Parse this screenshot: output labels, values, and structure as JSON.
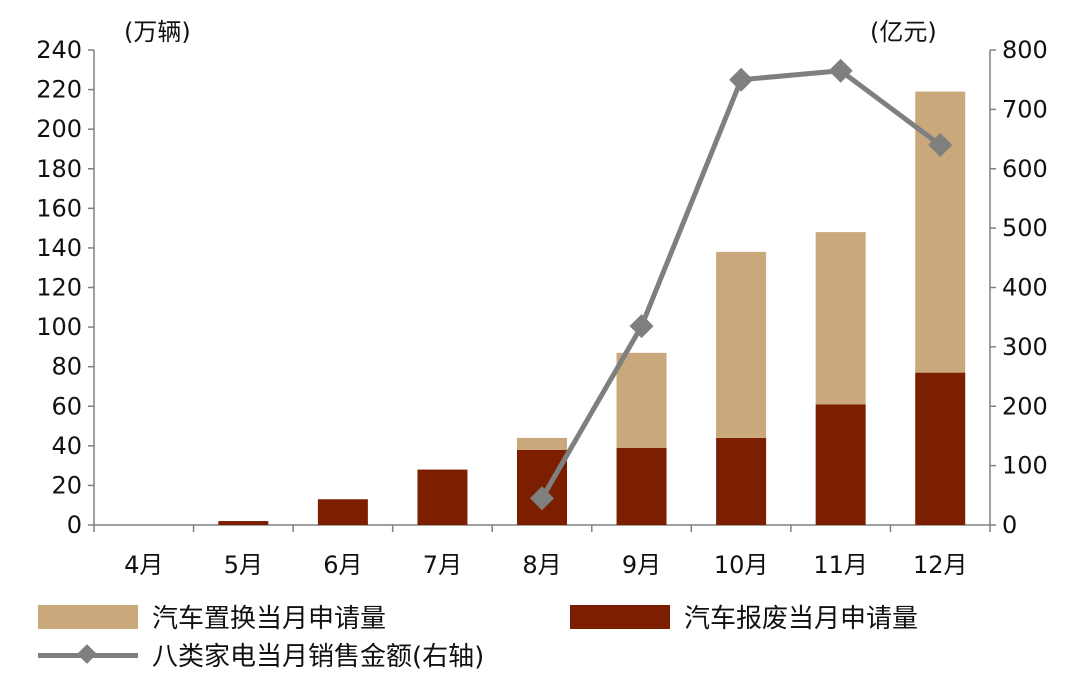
{
  "chart_data": {
    "type": "bar+line",
    "categories": [
      "4月",
      "5月",
      "6月",
      "7月",
      "8月",
      "9月",
      "10月",
      "11月",
      "12月"
    ],
    "series": [
      {
        "name": "汽车报废当月申请量",
        "type": "stacked-bar",
        "axis": "left",
        "color": "#7b1f00",
        "values": [
          0,
          2,
          13,
          28,
          38,
          39,
          44,
          61,
          77
        ]
      },
      {
        "name": "汽车置换当月申请量",
        "type": "stacked-bar",
        "axis": "left",
        "color": "#c9a97b",
        "values": [
          0,
          0,
          0,
          0,
          6,
          48,
          94,
          87,
          142
        ]
      },
      {
        "name": "八类家电当月销售金额(右轴)",
        "type": "line",
        "axis": "right",
        "color": "#7f7f7f",
        "marker": "diamond",
        "values": [
          null,
          null,
          null,
          null,
          45,
          335,
          750,
          765,
          640
        ]
      }
    ],
    "left_axis": {
      "unit": "(万辆)",
      "ylim": [
        0,
        240
      ],
      "ticks": [
        0,
        20,
        40,
        60,
        80,
        100,
        120,
        140,
        160,
        180,
        200,
        220,
        240
      ]
    },
    "right_axis": {
      "unit": "(亿元)",
      "ylim": [
        0,
        800
      ],
      "ticks": [
        0,
        100,
        200,
        300,
        400,
        500,
        600,
        700,
        800
      ]
    },
    "grid": false,
    "legend_placement": "bottom"
  },
  "legend": {
    "replace_label": "汽车置换当月申请量",
    "scrap_label": "汽车报废当月申请量",
    "appliance_label": "八类家电当月销售金额(右轴)"
  }
}
